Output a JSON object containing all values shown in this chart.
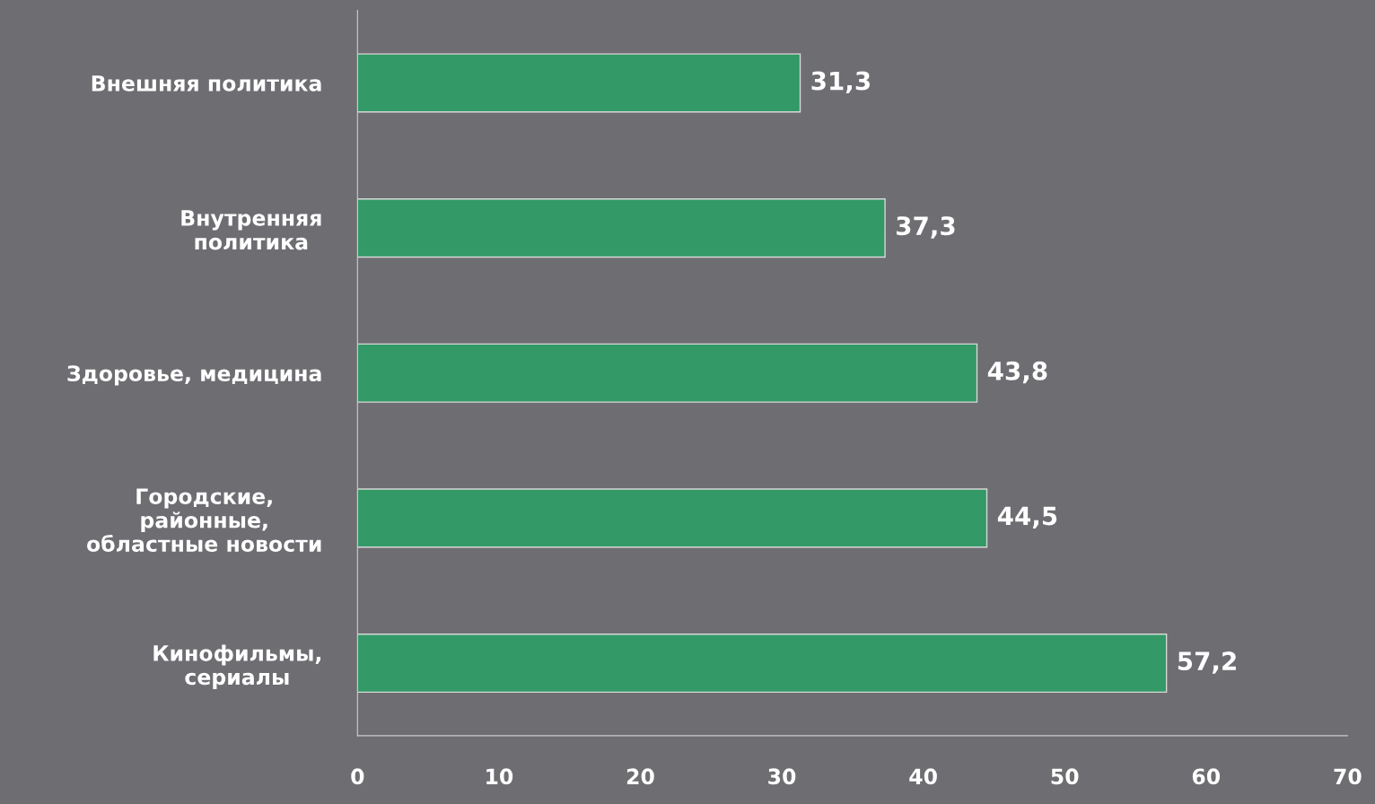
{
  "chart_data": {
    "type": "bar",
    "orientation": "horizontal",
    "categories": [
      "Внешняя политика",
      "Внутренняя\nполитика",
      "Здоровье, медицина",
      "Городские,\nрайонные,\nобластные новости",
      "Кинофильмы,\nсериалы"
    ],
    "values": [
      31.3,
      37.3,
      43.8,
      44.5,
      57.2
    ],
    "value_labels": [
      "31,3",
      "37,3",
      "43,8",
      "44,5",
      "57,2"
    ],
    "color": "#339966",
    "xlim": [
      0,
      70
    ],
    "xticks": [
      0,
      10,
      20,
      30,
      40,
      50,
      60,
      70
    ]
  }
}
